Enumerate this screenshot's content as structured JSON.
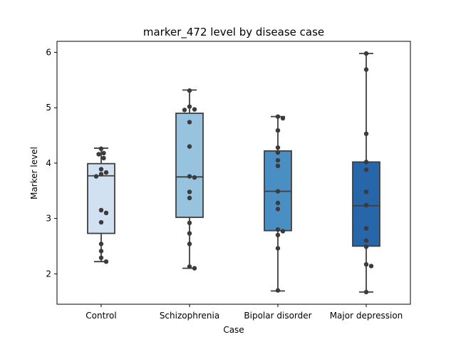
{
  "chart_data": {
    "type": "box",
    "title": "marker_472 level by disease case",
    "xlabel": "Case",
    "ylabel": "Marker level",
    "ylim": [
      1.45,
      6.2
    ],
    "yticks": [
      2,
      3,
      4,
      5,
      6
    ],
    "categories": [
      "Control",
      "Schizophrenia",
      "Bipolar disorder",
      "Major depression"
    ],
    "colors": [
      "#d1e1f1",
      "#97c3df",
      "#4a8fc4",
      "#2766a9"
    ],
    "boxes": [
      {
        "whisker_low": 2.22,
        "q1": 2.73,
        "median": 3.77,
        "q3": 3.99,
        "whisker_high": 4.27
      },
      {
        "whisker_low": 2.1,
        "q1": 3.02,
        "median": 3.75,
        "q3": 4.9,
        "whisker_high": 5.32
      },
      {
        "whisker_low": 1.69,
        "q1": 2.78,
        "median": 3.49,
        "q3": 4.22,
        "whisker_high": 4.84
      },
      {
        "whisker_low": 1.67,
        "q1": 2.5,
        "median": 3.23,
        "q3": 4.02,
        "whisker_high": 5.98
      }
    ],
    "points": [
      [
        4.26,
        4.18,
        4.16,
        4.09,
        3.89,
        3.83,
        3.8,
        3.76,
        3.15,
        3.1,
        2.93,
        2.54,
        2.41,
        2.29,
        2.22
      ],
      [
        5.31,
        5.02,
        4.97,
        4.96,
        4.74,
        4.3,
        3.76,
        3.74,
        3.48,
        3.37,
        2.92,
        2.73,
        2.54,
        2.13,
        2.1
      ],
      [
        4.84,
        4.81,
        4.59,
        4.28,
        4.19,
        4.05,
        3.95,
        3.49,
        3.28,
        3.17,
        2.8,
        2.77,
        2.7,
        2.46,
        1.7
      ],
      [
        5.98,
        5.69,
        4.53,
        4.02,
        3.88,
        3.48,
        3.24,
        2.82,
        2.6,
        2.49,
        2.17,
        2.14,
        1.67
      ]
    ]
  }
}
